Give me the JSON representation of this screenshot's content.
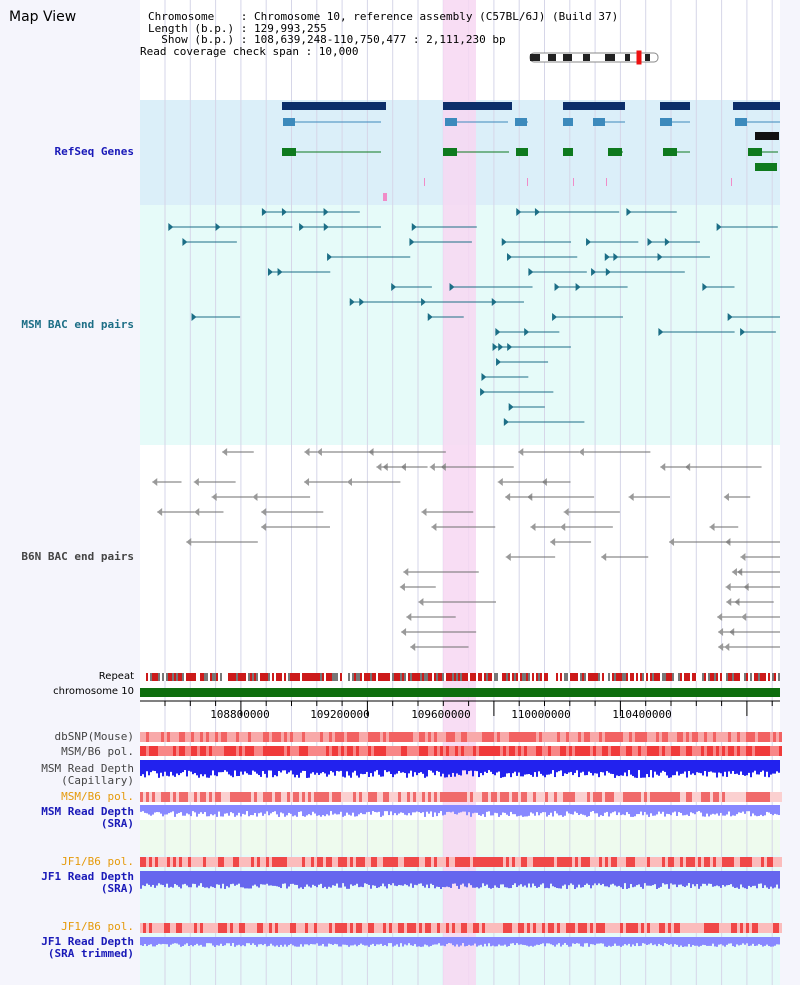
{
  "page_title": "Map View",
  "info": {
    "chromosome": "Chromosome    : Chromosome 10, reference assembly (C57BL/6J) (Build 37)",
    "length": "Length (b.p.) : 129,993,255",
    "show": "  Show (b.p.) : 108,639,248-110,750,477 : 2,111,230 bp",
    "span": "Read coverage check span : 10,000"
  },
  "tracks": {
    "refseq": "RefSeq Genes",
    "msm_bac": "MSM BAC end pairs",
    "b6n_bac": "B6N BAC end pairs",
    "repeat": "Repeat",
    "chromosome": "chromosome 10",
    "dbsnp": "dbSNP(Mouse)",
    "msm_b6_pol": "MSM/B6 pol.",
    "msm_depth_cap_1": "MSM Read Depth",
    "msm_depth_cap_2": "(Capillary)",
    "msm_b6_pol2": "MSM/B6 pol.",
    "msm_depth_sra_1": "MSM Read Depth",
    "msm_depth_sra_2": "(SRA)",
    "jf1_pol_1": "JF1/B6 pol.",
    "jf1_depth_1": "JF1 Read Depth",
    "jf1_depth_1b": "(SRA)",
    "jf1_pol_2": "JF1/B6 pol.",
    "jf1_depth_2": "JF1 Read Depth",
    "jf1_depth_2b": "(SRA trimmed)"
  },
  "axis_ticks": [
    "108800000",
    "109200000",
    "109600000",
    "110000000",
    "110400000"
  ],
  "colors": {
    "refseq_bg": "#dbeff9",
    "msm_bg": "#e6fbf9",
    "highlight": "#f7d7f2",
    "refseq_dark": "#0c2e6a",
    "refseq_mid": "#3c8abc",
    "refseq_green": "#0e7a1e",
    "msm_feature": "#1c6e86",
    "b6n_feature": "#6e6e6e",
    "chromosome_bar": "#0e6e0e",
    "depth_blue": "#2222ee",
    "depth_light": "#8888ff"
  }
}
